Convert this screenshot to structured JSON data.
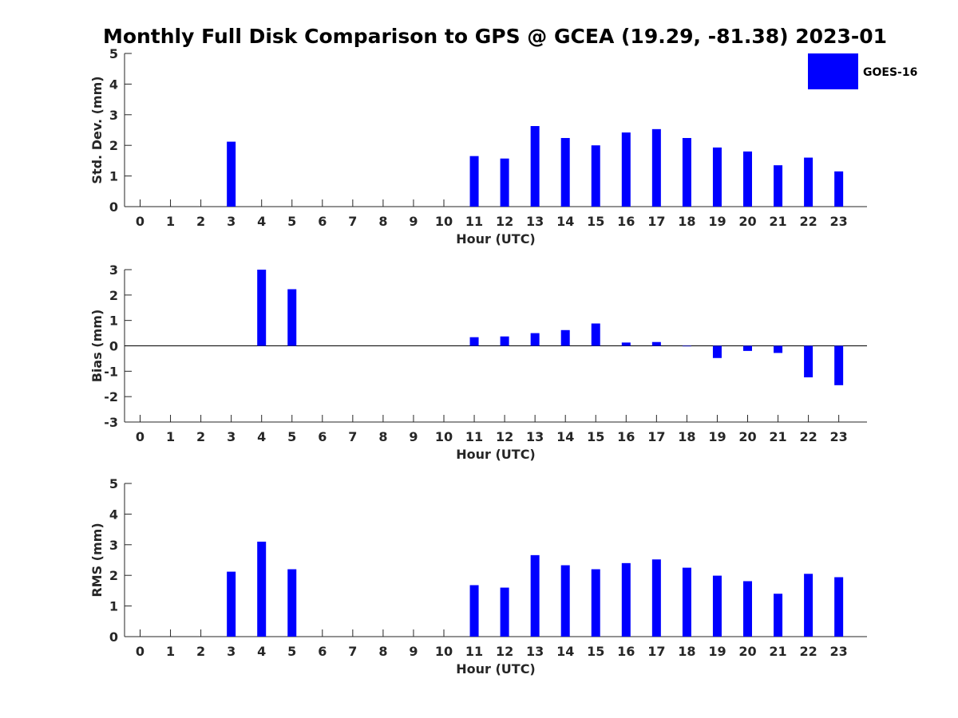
{
  "figure_title": "Monthly Full Disk Comparison to GPS @ GCEA (19.29, -81.38) 2023-01",
  "legend": {
    "label": "GOES-16",
    "color": "#0000ff"
  },
  "chart_data": [
    {
      "type": "bar",
      "xlabel": "Hour (UTC)",
      "ylabel": "Std. Dev. (mm)",
      "ylim": [
        0,
        5
      ],
      "yticks": [
        0,
        1,
        2,
        3,
        4,
        5
      ],
      "categories": [
        "0",
        "1",
        "2",
        "3",
        "4",
        "5",
        "6",
        "7",
        "8",
        "9",
        "10",
        "11",
        "12",
        "13",
        "14",
        "15",
        "16",
        "17",
        "18",
        "19",
        "20",
        "21",
        "22",
        "23"
      ],
      "series": [
        {
          "name": "GOES-16",
          "color": "#0000ff",
          "values": [
            null,
            null,
            null,
            2.12,
            null,
            null,
            null,
            null,
            null,
            null,
            null,
            1.65,
            1.57,
            2.63,
            2.24,
            2.0,
            2.42,
            2.53,
            2.24,
            1.93,
            1.8,
            1.35,
            1.6,
            1.15
          ]
        }
      ]
    },
    {
      "type": "bar",
      "xlabel": "Hour (UTC)",
      "ylabel": "Bias (mm)",
      "ylim": [
        -3,
        3
      ],
      "yticks": [
        -3,
        -2,
        -1,
        0,
        1,
        2,
        3
      ],
      "zero_line": true,
      "categories": [
        "0",
        "1",
        "2",
        "3",
        "4",
        "5",
        "6",
        "7",
        "8",
        "9",
        "10",
        "11",
        "12",
        "13",
        "14",
        "15",
        "16",
        "17",
        "18",
        "19",
        "20",
        "21",
        "22",
        "23"
      ],
      "series": [
        {
          "name": "GOES-16",
          "color": "#0000ff",
          "values": [
            null,
            null,
            null,
            null,
            3.0,
            2.23,
            null,
            null,
            null,
            null,
            null,
            0.34,
            0.37,
            0.5,
            0.62,
            0.88,
            0.13,
            0.15,
            -0.02,
            -0.48,
            -0.2,
            -0.28,
            -1.24,
            -1.55
          ]
        }
      ]
    },
    {
      "type": "bar",
      "xlabel": "Hour (UTC)",
      "ylabel": "RMS (mm)",
      "ylim": [
        0,
        5
      ],
      "yticks": [
        0,
        1,
        2,
        3,
        4,
        5
      ],
      "categories": [
        "0",
        "1",
        "2",
        "3",
        "4",
        "5",
        "6",
        "7",
        "8",
        "9",
        "10",
        "11",
        "12",
        "13",
        "14",
        "15",
        "16",
        "17",
        "18",
        "19",
        "20",
        "21",
        "22",
        "23"
      ],
      "series": [
        {
          "name": "GOES-16",
          "color": "#0000ff",
          "values": [
            null,
            null,
            null,
            2.12,
            3.1,
            2.2,
            null,
            null,
            null,
            null,
            null,
            1.68,
            1.6,
            2.66,
            2.33,
            2.2,
            2.4,
            2.52,
            2.25,
            1.99,
            1.81,
            1.4,
            2.05,
            1.94
          ]
        }
      ]
    }
  ]
}
